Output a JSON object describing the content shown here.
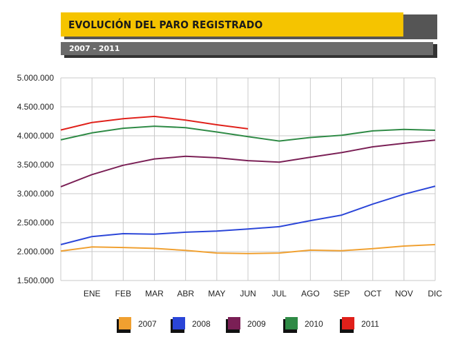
{
  "header": {
    "title": "EVOLUCIÓN DEL PARO REGISTRADO",
    "subtitle": "2007 - 2011"
  },
  "chart_data": {
    "type": "line",
    "title": "EVOLUCIÓN DEL PARO REGISTRADO",
    "subtitle": "2007 - 2011",
    "xlabel": "",
    "ylabel": "",
    "x": [
      "",
      "ENE",
      "FEB",
      "MAR",
      "ABR",
      "MAY",
      "JUN",
      "JUL",
      "AGO",
      "SEP",
      "OCT",
      "NOV",
      "DIC"
    ],
    "ylim": [
      1500000,
      5000000
    ],
    "yticks": [
      1500000,
      2000000,
      2500000,
      3000000,
      3500000,
      4000000,
      4500000,
      5000000
    ],
    "ytick_labels": [
      "1.500.000",
      "2.000.000",
      "2.500.000",
      "3.000.000",
      "3.500.000",
      "4.000.000",
      "4.500.000",
      "5.000.000"
    ],
    "grid": true,
    "legend": "bottom",
    "series": [
      {
        "name": "2007",
        "color": "#f0a030",
        "values": [
          2010000,
          2080000,
          2070000,
          2055000,
          2020000,
          1975000,
          1965000,
          1975000,
          2025000,
          2015000,
          2050000,
          2095000,
          2120000
        ]
      },
      {
        "name": "2008",
        "color": "#2a45d8",
        "values": [
          2120000,
          2260000,
          2310000,
          2300000,
          2335000,
          2355000,
          2390000,
          2430000,
          2535000,
          2630000,
          2820000,
          2990000,
          3130000
        ]
      },
      {
        "name": "2009",
        "color": "#7a1f55",
        "values": [
          3120000,
          3330000,
          3490000,
          3600000,
          3645000,
          3620000,
          3570000,
          3545000,
          3630000,
          3710000,
          3810000,
          3870000,
          3925000
        ]
      },
      {
        "name": "2010",
        "color": "#2e8a45",
        "values": [
          3930000,
          4050000,
          4130000,
          4165000,
          4140000,
          4065000,
          3985000,
          3910000,
          3970000,
          4010000,
          4085000,
          4110000,
          4095000
        ]
      },
      {
        "name": "2011",
        "color": "#e0201a",
        "values": [
          4100000,
          4230000,
          4295000,
          4335000,
          4270000,
          4190000,
          4120000,
          null,
          null,
          null,
          null,
          null,
          null
        ]
      }
    ]
  }
}
